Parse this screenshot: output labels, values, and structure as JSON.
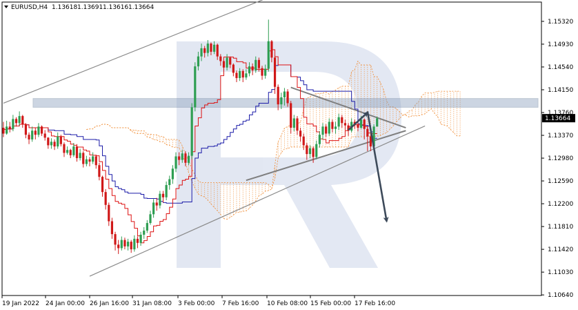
{
  "header": {
    "symbol": "EURUSD,H4",
    "open": "1.13618",
    "high": "1.13691",
    "low": "1.13616",
    "close": "1.13664"
  },
  "chart_data": {
    "type": "candlestick",
    "symbol": "EURUSD",
    "timeframe": "H4",
    "grid": false,
    "ylim": [
      1.1063,
      1.1565
    ],
    "y_ticks": [
      "1.15320",
      "1.14930",
      "1.14540",
      "1.14150",
      "1.13760",
      "1.13370",
      "1.12980",
      "1.12590",
      "1.12200",
      "1.11810",
      "1.11420",
      "1.11030",
      "1.10640"
    ],
    "x_ticks": [
      "19 Jan 2022",
      "24 Jan 00:00",
      "26 Jan 16:00",
      "31 Jan 08:00",
      "3 Feb 00:00",
      "7 Feb 16:00",
      "10 Feb 08:00",
      "15 Feb 00:00",
      "17 Feb 16:00"
    ],
    "current_price": "1.13664",
    "bull_color": "#2e9e52",
    "bear_color": "#d01818",
    "tenkan_color": "#dd1111",
    "kijun_color": "#1a1aa8",
    "cloud_color": "#f08a30",
    "candles_close": [
      1.134,
      1.1352,
      1.1348,
      1.1365,
      1.1358,
      1.137,
      1.1356,
      1.1338,
      1.133,
      1.1345,
      1.1338,
      1.1352,
      1.134,
      1.1333,
      1.132,
      1.1326,
      1.1318,
      1.1335,
      1.1322,
      1.1307,
      1.1312,
      1.1303,
      1.1318,
      1.1298,
      1.1307,
      1.1288,
      1.1296,
      1.1292,
      1.1301,
      1.1286,
      1.1266,
      1.124,
      1.1218,
      1.119,
      1.1168,
      1.115,
      1.1144,
      1.1158,
      1.1147,
      1.1155,
      1.1142,
      1.116,
      1.1153,
      1.1167,
      1.1174,
      1.1187,
      1.1202,
      1.1222,
      1.1217,
      1.1237,
      1.1231,
      1.1252,
      1.1262,
      1.128,
      1.1301,
      1.1295,
      1.1306,
      1.129,
      1.1302,
      1.1385,
      1.1455,
      1.1472,
      1.1486,
      1.1478,
      1.1494,
      1.148,
      1.1492,
      1.1472,
      1.1464,
      1.1453,
      1.147,
      1.1458,
      1.1444,
      1.1435,
      1.1447,
      1.1436,
      1.1443,
      1.1455,
      1.1448,
      1.1466,
      1.1452,
      1.1439,
      1.1451,
      1.1498,
      1.147,
      1.142,
      1.139,
      1.1402,
      1.1412,
      1.1392,
      1.135,
      1.1366,
      1.1345,
      1.1335,
      1.132,
      1.1305,
      1.1315,
      1.13,
      1.1322,
      1.1338,
      1.1352,
      1.134,
      1.136,
      1.1348,
      1.1352,
      1.1368,
      1.1358,
      1.1354,
      1.1345,
      1.136,
      1.1356,
      1.135,
      1.1364,
      1.1348,
      1.1335,
      1.1318,
      1.1352,
      1.1366
    ],
    "candles_open_first": 1.135,
    "candles_high": [
      1.136,
      1.1362,
      1.136,
      1.1372,
      1.1368,
      1.1378,
      1.1372,
      1.1358,
      1.1342,
      1.1352,
      1.135,
      1.1358,
      1.1354,
      1.1346,
      1.1334,
      1.1332,
      1.133,
      1.1342,
      1.1338,
      1.1325,
      1.1318,
      1.1314,
      1.1324,
      1.1322,
      1.1314,
      1.131,
      1.1302,
      1.13,
      1.1308,
      1.1304,
      1.129,
      1.1268,
      1.1245,
      1.1222,
      1.1196,
      1.1172,
      1.1158,
      1.1164,
      1.1162,
      1.116,
      1.1158,
      1.1166,
      1.1164,
      1.1172,
      1.118,
      1.1192,
      1.1208,
      1.1228,
      1.123,
      1.1242,
      1.1242,
      1.1258,
      1.1268,
      1.1286,
      1.1308,
      1.1308,
      1.1312,
      1.131,
      1.1308,
      1.1392,
      1.1462,
      1.148,
      1.1494,
      1.149,
      1.15,
      1.1496,
      1.1498,
      1.1494,
      1.1476,
      1.1468,
      1.1476,
      1.1472,
      1.146,
      1.1448,
      1.1452,
      1.145,
      1.145,
      1.1462,
      1.146,
      1.1472,
      1.147,
      1.1456,
      1.1458,
      1.1535,
      1.15,
      1.1474,
      1.1424,
      1.141,
      1.1418,
      1.1416,
      1.1396,
      1.1372,
      1.137,
      1.135,
      1.134,
      1.1324,
      1.132,
      1.1318,
      1.1328,
      1.1344,
      1.1358,
      1.1356,
      1.1366,
      1.1364,
      1.136,
      1.1374,
      1.1372,
      1.1364,
      1.1358,
      1.1366,
      1.1364,
      1.1362,
      1.137,
      1.1366,
      1.1352,
      1.134,
      1.1356,
      1.1369
    ],
    "candles_low": [
      1.1334,
      1.1338,
      1.1342,
      1.1344,
      1.1352,
      1.1354,
      1.135,
      1.1332,
      1.1322,
      1.1326,
      1.133,
      1.1334,
      1.1336,
      1.1328,
      1.1314,
      1.1314,
      1.1312,
      1.1314,
      1.1318,
      1.13,
      1.1304,
      1.1298,
      1.13,
      1.1292,
      1.1294,
      1.1282,
      1.1284,
      1.1284,
      1.1288,
      1.128,
      1.126,
      1.1232,
      1.121,
      1.1182,
      1.116,
      1.114,
      1.1134,
      1.114,
      1.1142,
      1.114,
      1.1136,
      1.1138,
      1.1144,
      1.1148,
      1.116,
      1.117,
      1.1184,
      1.1196,
      1.1208,
      1.1212,
      1.1222,
      1.1226,
      1.1244,
      1.1254,
      1.1274,
      1.1286,
      1.129,
      1.1284,
      1.1286,
      1.1296,
      1.1378,
      1.1448,
      1.1464,
      1.147,
      1.1472,
      1.1474,
      1.1476,
      1.1466,
      1.1456,
      1.1442,
      1.1448,
      1.1452,
      1.1438,
      1.1428,
      1.143,
      1.1428,
      1.1432,
      1.1438,
      1.144,
      1.1444,
      1.1446,
      1.1432,
      1.1434,
      1.1446,
      1.1462,
      1.1408,
      1.138,
      1.1382,
      1.1388,
      1.1386,
      1.134,
      1.1344,
      1.1338,
      1.1326,
      1.1312,
      1.1295,
      1.1298,
      1.129,
      1.1296,
      1.1316,
      1.133,
      1.1334,
      1.1336,
      1.1342,
      1.134,
      1.1346,
      1.135,
      1.1346,
      1.1336,
      1.1342,
      1.1348,
      1.1344,
      1.1348,
      1.133,
      1.131,
      1.131,
      1.1316,
      1.1362
    ],
    "channel_lines": [
      {
        "from": [
          "19 Jan",
          1.1392
        ],
        "to": [
          "10 Feb",
          1.1575
        ]
      },
      {
        "from": [
          "26 Jan",
          1.1096
        ],
        "to": [
          "22 Feb",
          1.1353
        ]
      }
    ],
    "triangle_lines": [
      {
        "from": [
          "8 Feb",
          1.126
        ],
        "to": [
          "21 Feb",
          1.1345
        ]
      },
      {
        "from": [
          "11 Feb",
          1.1419
        ],
        "to": [
          "21 Feb",
          1.135
        ]
      }
    ],
    "resistance_zone": [
      1.1385,
      1.14
    ],
    "forecast_arrows": [
      {
        "from": [
          "17 Feb",
          1.1346
        ],
        "to": [
          "18 Feb",
          1.1376
        ]
      },
      {
        "from": [
          "18 Feb",
          1.1378
        ],
        "to": [
          "19 Feb",
          1.119
        ]
      }
    ]
  }
}
